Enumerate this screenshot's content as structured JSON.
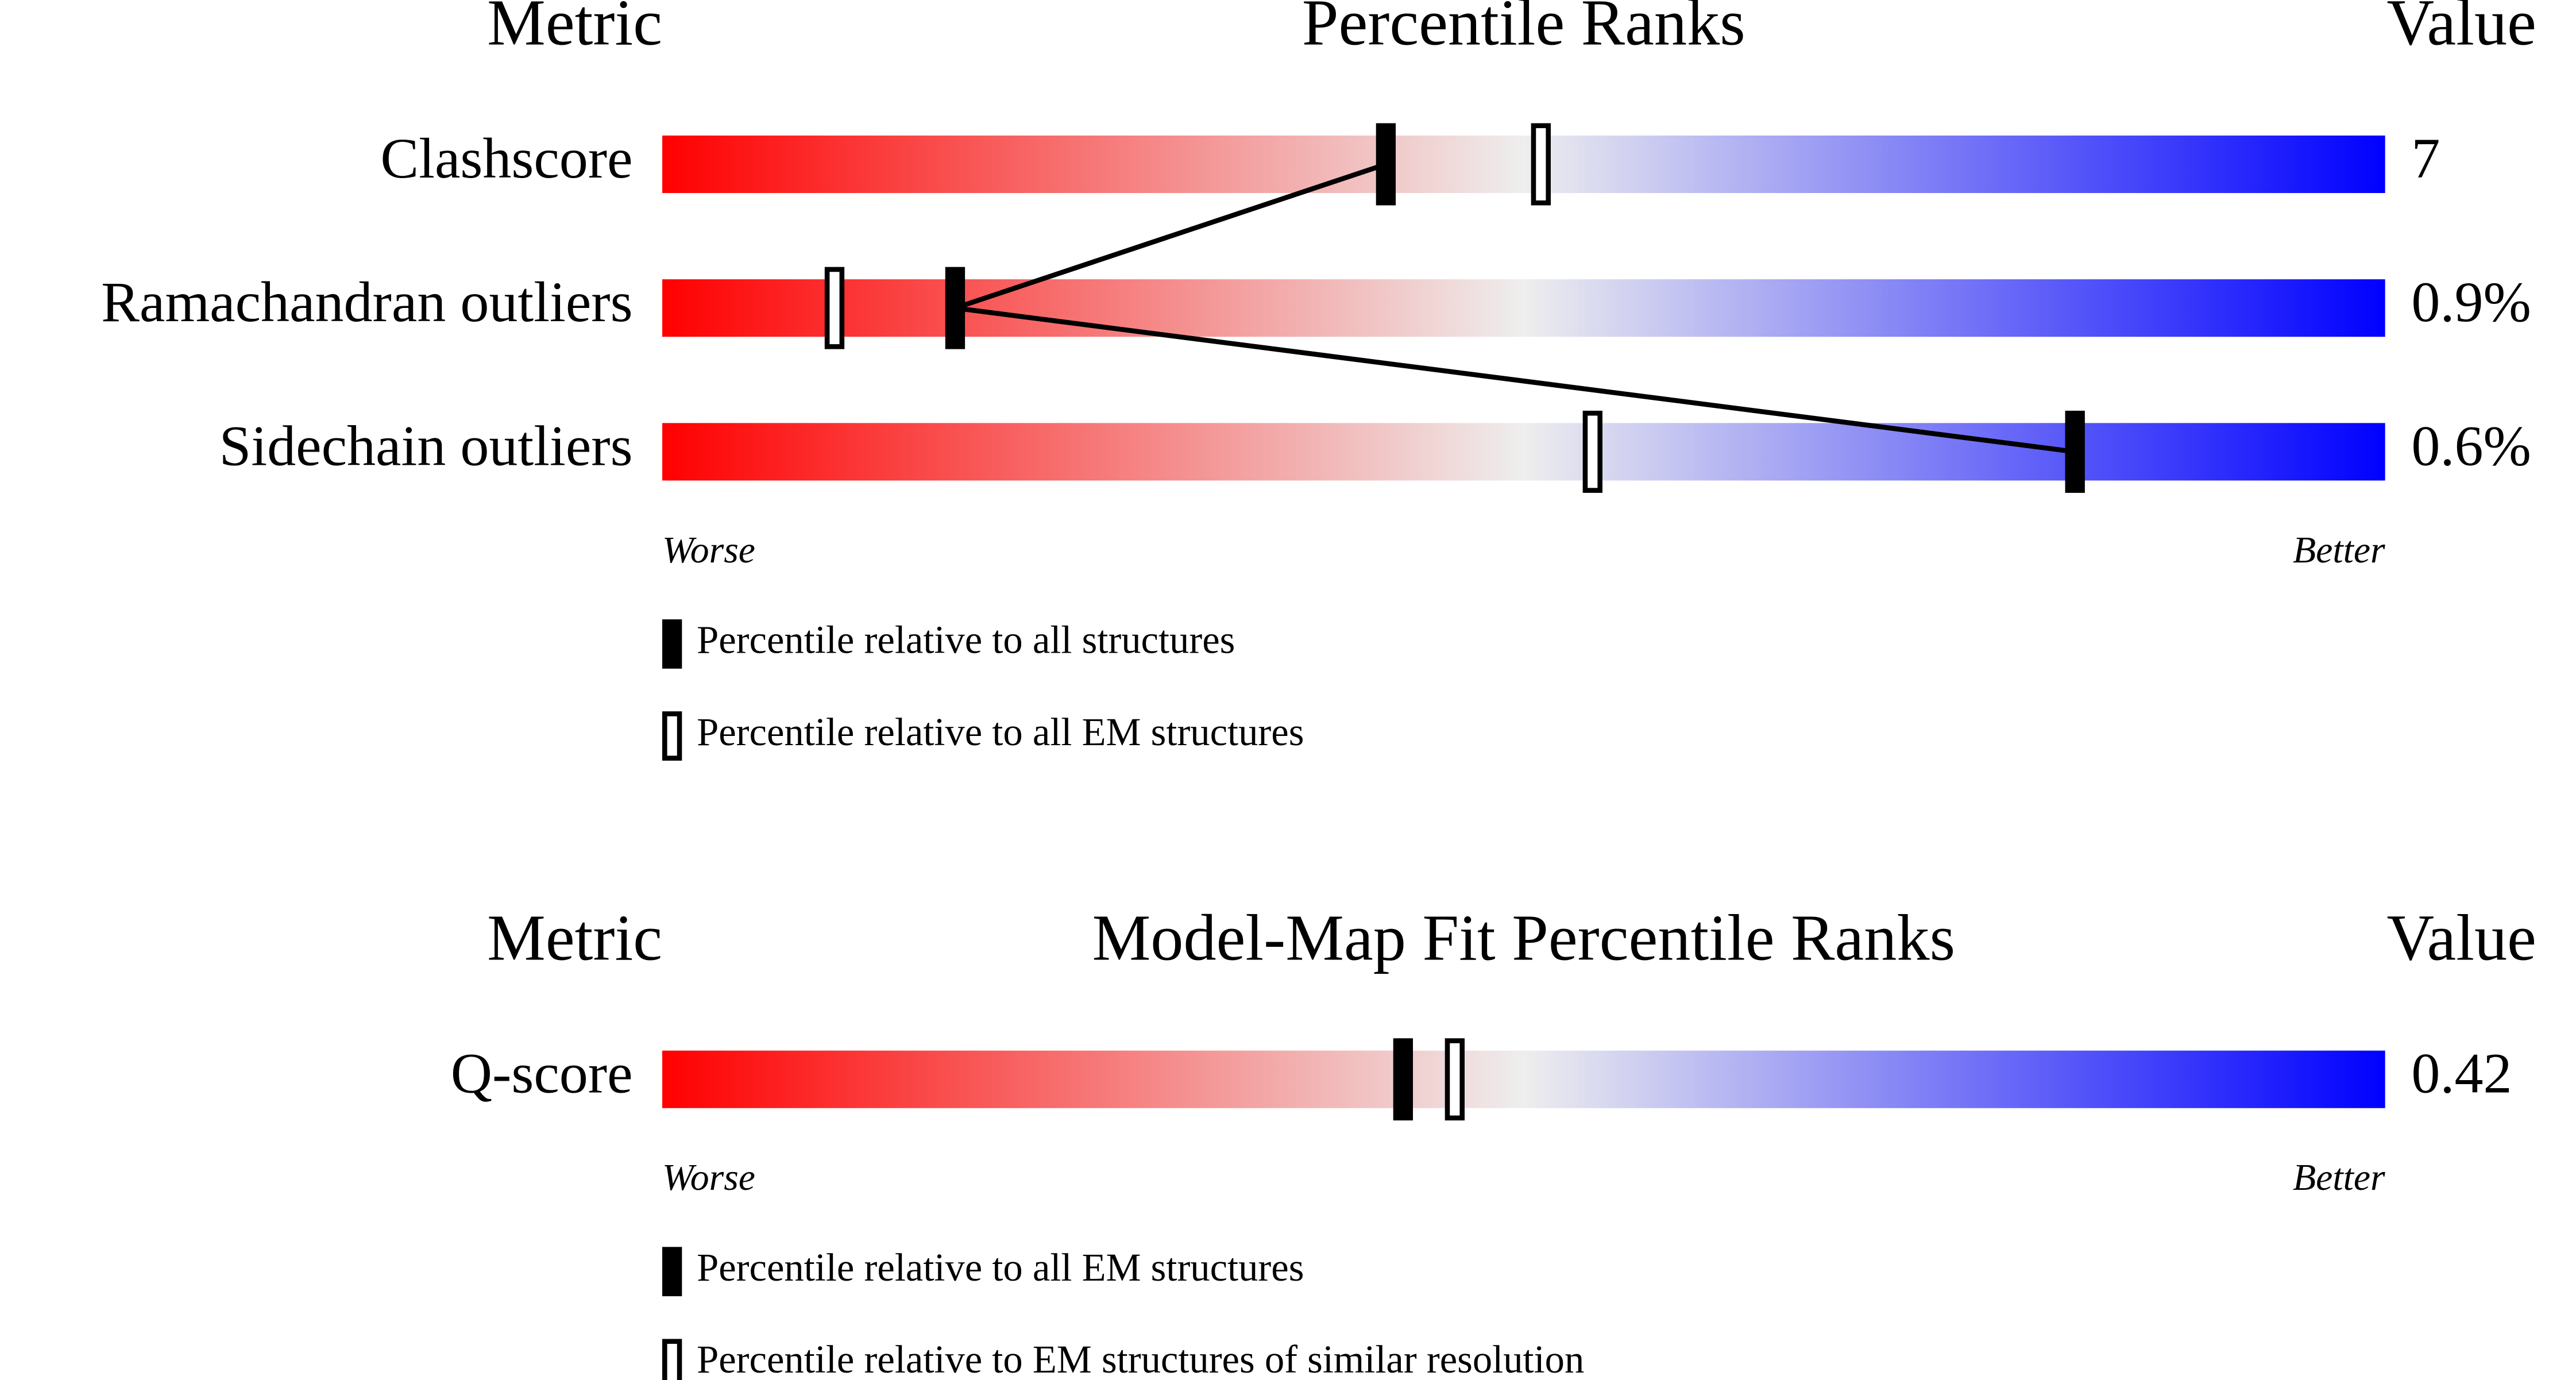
{
  "chart_data": [
    {
      "type": "percentile-slider",
      "metric_header": "Metric",
      "title": "Percentile Ranks",
      "value_header": "Value",
      "categories": [
        "Clashscore",
        "Ramachandran outliers",
        "Sidechain outliers"
      ],
      "metric_values": [
        "7",
        "0.9%",
        "0.6%"
      ],
      "series": [
        {
          "name": "Percentile relative to all structures",
          "color": "#000000",
          "marker": "filled",
          "connected": true,
          "values": [
            42,
            17,
            82
          ]
        },
        {
          "name": "Percentile relative to all EM structures",
          "color": "#000000",
          "marker": "outline",
          "connected": false,
          "values": [
            51,
            10,
            54
          ]
        }
      ],
      "xlim": [
        0,
        100
      ],
      "low_label": "Worse",
      "high_label": "Better",
      "gradient": [
        "#ff0000",
        "#eeeeee",
        "#0000ff"
      ]
    },
    {
      "type": "percentile-slider",
      "metric_header": "Metric",
      "title": "Model-Map Fit Percentile Ranks",
      "value_header": "Value",
      "categories": [
        "Q-score"
      ],
      "metric_values": [
        "0.42"
      ],
      "series": [
        {
          "name": "Percentile relative to all EM structures",
          "color": "#000000",
          "marker": "filled",
          "connected": true,
          "values": [
            43
          ]
        },
        {
          "name": "Percentile relative to EM structures of similar resolution",
          "color": "#000000",
          "marker": "outline",
          "connected": false,
          "values": [
            46
          ]
        }
      ],
      "xlim": [
        0,
        100
      ],
      "low_label": "Worse",
      "high_label": "Better",
      "gradient": [
        "#ff0000",
        "#eeeeee",
        "#0000ff"
      ]
    }
  ]
}
